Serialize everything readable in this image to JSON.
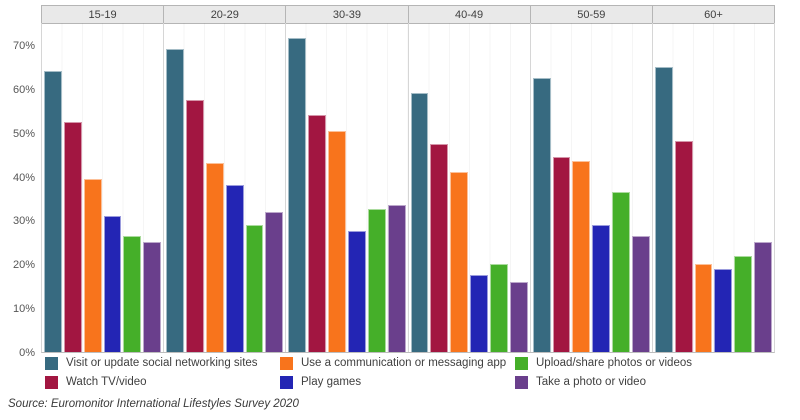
{
  "chart_data": {
    "type": "bar",
    "title": "",
    "categories": [
      "15-19",
      "20-29",
      "30-39",
      "40-49",
      "50-59",
      "60+"
    ],
    "series": [
      {
        "name": "Visit or update social networking sites",
        "color": "#376A80",
        "values": [
          64,
          69,
          71.5,
          59,
          62.5,
          65
        ]
      },
      {
        "name": "Watch TV/video",
        "color": "#A21641",
        "values": [
          52.5,
          57.5,
          54,
          47.5,
          44.5,
          48
        ]
      },
      {
        "name": "Use a communication or messaging app",
        "color": "#F8741C",
        "values": [
          39.5,
          43,
          50.5,
          41,
          43.5,
          20
        ]
      },
      {
        "name": "Play games",
        "color": "#2325B4",
        "values": [
          31,
          38,
          27.5,
          17.5,
          29,
          19
        ]
      },
      {
        "name": "Upload/share photos or videos",
        "color": "#45AF29",
        "values": [
          26.5,
          29,
          32.5,
          20,
          36.5,
          22
        ]
      },
      {
        "name": "Take a photo or video",
        "color": "#6A3F8C",
        "values": [
          25,
          32,
          33.5,
          16,
          26.5,
          25
        ]
      }
    ],
    "xlabel": "",
    "ylabel": "",
    "ylim": [
      0,
      75
    ],
    "yticks": [
      "0%",
      "10%",
      "20%",
      "30%",
      "40%",
      "50%",
      "60%",
      "70%"
    ],
    "grid": "faint vertical lines per bar slot, panel separators between age groups",
    "legend_position": "bottom",
    "legend_columns": [
      [
        0,
        1
      ],
      [
        2,
        3
      ],
      [
        4,
        5
      ]
    ]
  },
  "source": {
    "text": "Source: Euromonitor International Lifestyles Survey 2020"
  }
}
